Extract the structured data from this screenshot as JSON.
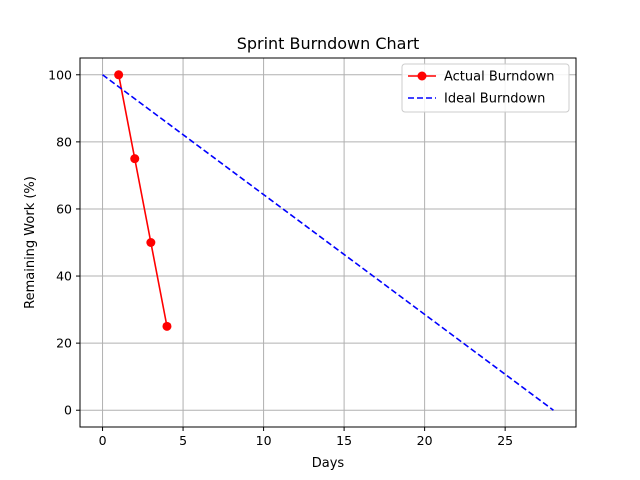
{
  "chart_data": {
    "type": "line",
    "title": "Sprint Burndown Chart",
    "xlabel": "Days",
    "ylabel": "Remaining Work (%)",
    "xlim": [
      -1.4,
      29.4
    ],
    "ylim": [
      -5,
      105
    ],
    "xticks": [
      0,
      5,
      10,
      15,
      20,
      25
    ],
    "yticks": [
      0,
      20,
      40,
      60,
      80,
      100
    ],
    "grid": true,
    "legend_position": "top-right",
    "series": [
      {
        "name": "Actual Burndown",
        "color": "#ff0000",
        "style": "solid",
        "marker": "circle",
        "x": [
          1,
          2,
          3,
          4
        ],
        "y": [
          100,
          75,
          50,
          25
        ]
      },
      {
        "name": "Ideal Burndown",
        "color": "#0000ff",
        "style": "dashed",
        "marker": "none",
        "x": [
          0,
          28
        ],
        "y": [
          100,
          0
        ]
      }
    ]
  }
}
